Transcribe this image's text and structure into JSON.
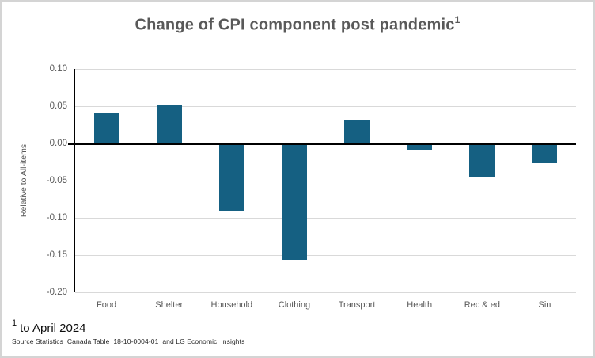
{
  "chart_data": {
    "type": "bar",
    "title": "Change of CPI component post pandemic",
    "title_footnote_marker": "1",
    "categories": [
      "Food",
      "Shelter",
      "Household",
      "Clothing",
      "Transport",
      "Health",
      "Rec & ed",
      "Sin"
    ],
    "values": [
      0.04,
      0.051,
      -0.091,
      -0.156,
      0.031,
      -0.008,
      -0.046,
      -0.027
    ],
    "xlabel": "",
    "ylabel": "Relative to All-items",
    "ylim": [
      -0.2,
      0.1
    ],
    "yticks": [
      0.1,
      0.05,
      0.0,
      -0.05,
      -0.1,
      -0.15,
      -0.2
    ],
    "ytick_labels": [
      "0.10",
      "0.05",
      "0.00",
      "-0.05",
      "-0.10",
      "-0.15",
      "-0.20"
    ],
    "grid": true,
    "legend": false,
    "bar_color": "#156082",
    "axis_color": "#000000",
    "gridline_color": "#d9d9d9",
    "text_color": "#595959"
  },
  "footnote": {
    "marker": "1",
    "text": "to April 2024",
    "source": "Source Statistics  Canada Table  18-10-0004-01  and LG Economic  Insights"
  }
}
